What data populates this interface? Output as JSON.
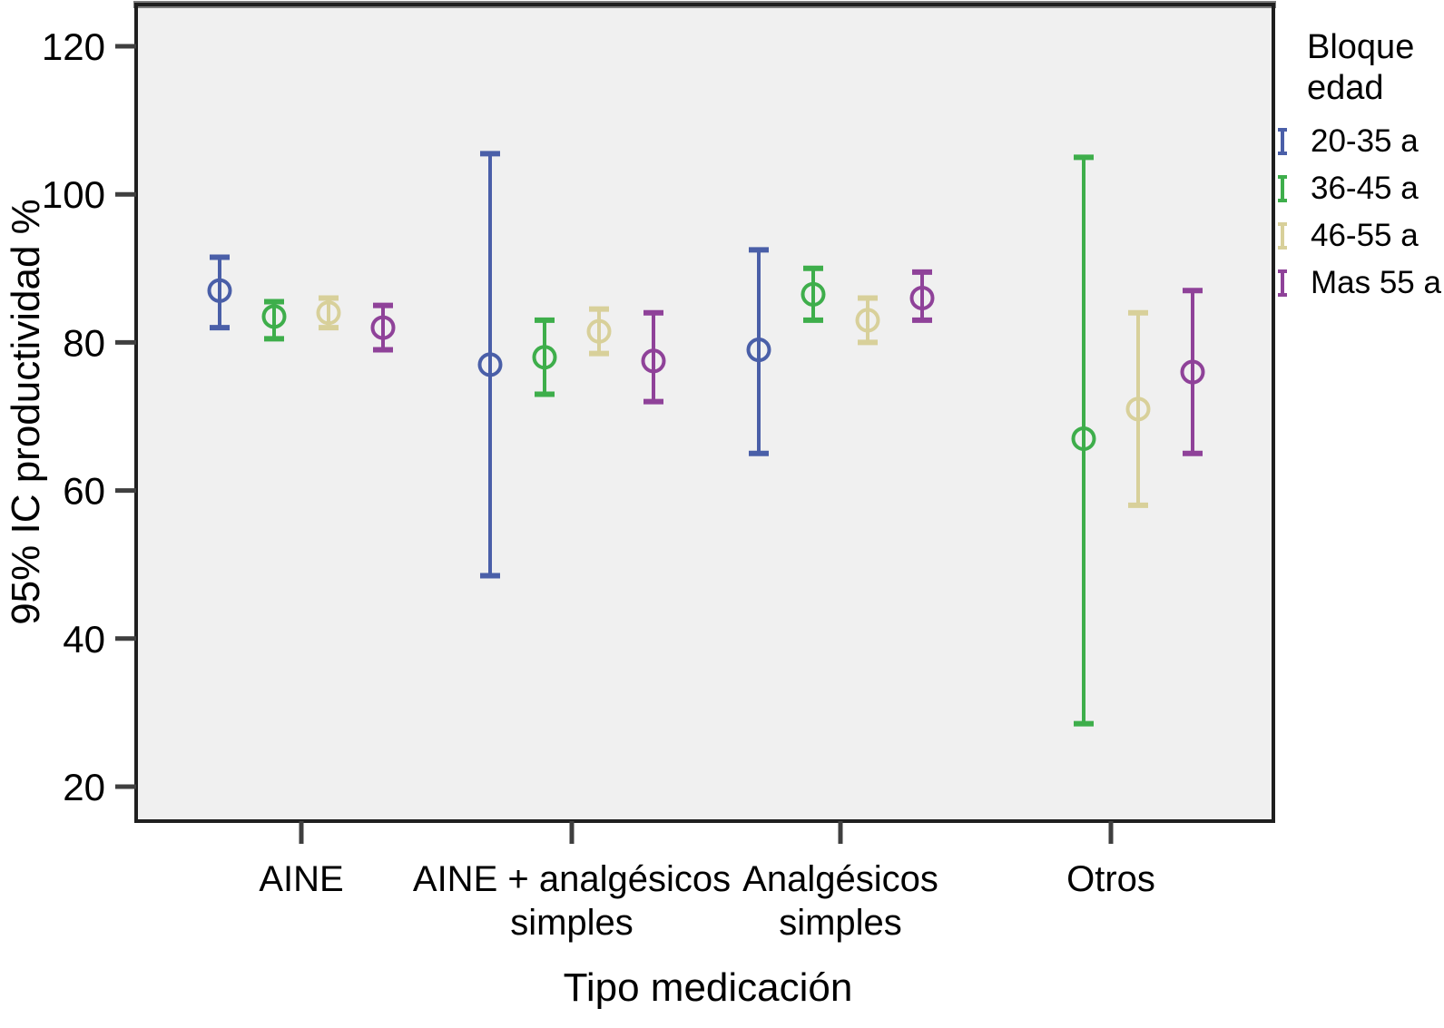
{
  "chart_data": {
    "type": "errorbar",
    "title": "",
    "xlabel": "Tipo medicación",
    "ylabel": "95% IC productividad %",
    "ylim": [
      15,
      126
    ],
    "yticks": [
      20,
      40,
      60,
      80,
      100,
      120
    ],
    "grid": false,
    "legend_position": "right",
    "categories": [
      "AINE",
      "AINE + analgésicos simples",
      "Analgésicos simples",
      "Otros"
    ],
    "category_label_lines": [
      [
        "AINE"
      ],
      [
        "AINE + analgésicos",
        "simples"
      ],
      [
        "Analgésicos",
        "simples"
      ],
      [
        "Otros"
      ]
    ],
    "series": [
      {
        "name": "20-35 a",
        "color": "#4A5FA8",
        "means": [
          87,
          77,
          79,
          null
        ],
        "ci_low": [
          82,
          48.5,
          65,
          null
        ],
        "ci_high": [
          91.5,
          105.5,
          92.5,
          null
        ]
      },
      {
        "name": "36-45 a",
        "color": "#3EAE4B",
        "means": [
          83.5,
          78,
          86.5,
          67
        ],
        "ci_low": [
          80.5,
          73,
          83,
          28.5
        ],
        "ci_high": [
          85.5,
          83,
          90,
          105
        ]
      },
      {
        "name": "46-55 a",
        "color": "#D8D09A",
        "means": [
          84,
          81.5,
          83,
          71
        ],
        "ci_low": [
          82,
          78.5,
          80,
          58
        ],
        "ci_high": [
          86,
          84.5,
          86,
          84
        ]
      },
      {
        "name": "Mas 55 a",
        "color": "#8F4299",
        "means": [
          82,
          77.5,
          86,
          76
        ],
        "ci_low": [
          79,
          72,
          83,
          65
        ],
        "ci_high": [
          85,
          84,
          89.5,
          87
        ]
      }
    ]
  },
  "legend": {
    "title_lines": [
      "Bloque",
      "edad"
    ]
  },
  "colors": {
    "plot_background": "#f0f0f0",
    "frame": "#1f1f1f",
    "frame_top": "#7d7d7d",
    "tick": "#3f3f3f",
    "text": "#000000"
  }
}
